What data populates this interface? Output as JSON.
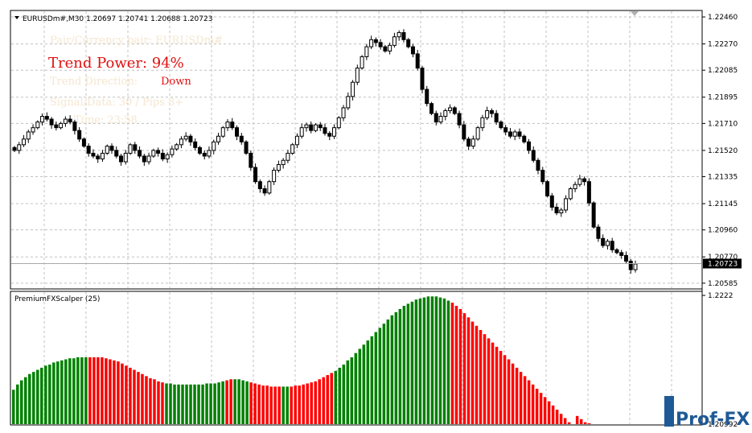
{
  "window": {
    "symbol_header": "EURUSDm#,M30  1.20697 1.20741 1.20688 1.20723"
  },
  "overlay": {
    "pair_line": "Pair/Currency pair: EURUSDm#",
    "trend_power": "Trend Power: 94%",
    "trend_direction_label": "Trend Direction:",
    "trend_direction": "Down",
    "line4": "Signal/Data: 30 / Pips 8+",
    "line5": "Time: 23:58"
  },
  "indicator": {
    "label": "PremiumFXScalper (25)"
  },
  "logo": {
    "text": "Prof-FX"
  },
  "colors": {
    "bull": "#008000",
    "bear": "#ff0000",
    "candle_wick": "#000000",
    "grid": "#c0c0c0",
    "price_line": "#a9a9a9",
    "text_red": "#e01010"
  },
  "chart_data": [
    {
      "type": "candlestick",
      "title": "EURUSDm#,M30",
      "ohlc_last": {
        "open": 1.20697,
        "high": 1.20741,
        "low": 1.20688,
        "close": 1.20723
      },
      "current_price": "1.20723",
      "y_ticks": [
        "1.22460",
        "1.22270",
        "1.22085",
        "1.21895",
        "1.21710",
        "1.21520",
        "1.21335",
        "1.21145",
        "1.20960",
        "1.20770",
        "1.20585"
      ],
      "ylim": [
        1.2055,
        1.225
      ],
      "grid": true,
      "closes": [
        1.2152,
        1.2156,
        1.216,
        1.2165,
        1.2168,
        1.2172,
        1.2176,
        1.2174,
        1.217,
        1.2168,
        1.2171,
        1.2174,
        1.2172,
        1.2166,
        1.216,
        1.2155,
        1.215,
        1.2148,
        1.2146,
        1.215,
        1.2155,
        1.2152,
        1.2148,
        1.2144,
        1.215,
        1.2156,
        1.2152,
        1.2148,
        1.2144,
        1.2148,
        1.2152,
        1.215,
        1.2146,
        1.2149,
        1.2153,
        1.2156,
        1.216,
        1.2162,
        1.2158,
        1.2154,
        1.215,
        1.2148,
        1.2152,
        1.2158,
        1.2162,
        1.2168,
        1.2172,
        1.2168,
        1.2162,
        1.2158,
        1.215,
        1.214,
        1.213,
        1.2125,
        1.2122,
        1.213,
        1.2138,
        1.2142,
        1.2145,
        1.215,
        1.2156,
        1.2162,
        1.2168,
        1.217,
        1.2166,
        1.217,
        1.2168,
        1.2164,
        1.2162,
        1.2168,
        1.2175,
        1.2182,
        1.219,
        1.22,
        1.221,
        1.2218,
        1.2225,
        1.223,
        1.2228,
        1.2225,
        1.2222,
        1.2226,
        1.2232,
        1.2235,
        1.223,
        1.2225,
        1.222,
        1.221,
        1.2195,
        1.2185,
        1.2178,
        1.2172,
        1.2176,
        1.218,
        1.2182,
        1.2178,
        1.217,
        1.216,
        1.2155,
        1.216,
        1.2168,
        1.2175,
        1.218,
        1.2178,
        1.2172,
        1.2168,
        1.2165,
        1.2162,
        1.2165,
        1.2162,
        1.2158,
        1.2152,
        1.2145,
        1.2138,
        1.213,
        1.212,
        1.2112,
        1.2108,
        1.211,
        1.2118,
        1.2125,
        1.2128,
        1.2132,
        1.213,
        1.2115,
        1.2098,
        1.209,
        1.2085,
        1.2088,
        1.2082,
        1.208,
        1.2078,
        1.2074,
        1.2068,
        1.2072
      ]
    },
    {
      "type": "bar",
      "title": "PremiumFXScalper (25)",
      "y_ticks": [
        "1.2222",
        "1.20992"
      ],
      "ylim": [
        1.20992,
        1.2222
      ],
      "colors_by_segment": [
        {
          "from": 0,
          "to": 18,
          "color": "bull"
        },
        {
          "from": 19,
          "to": 37,
          "color": "bear"
        },
        {
          "from": 38,
          "to": 52,
          "color": "bull"
        },
        {
          "from": 53,
          "to": 54,
          "color": "bear"
        },
        {
          "from": 55,
          "to": 58,
          "color": "bull"
        },
        {
          "from": 59,
          "to": 66,
          "color": "bear"
        },
        {
          "from": 67,
          "to": 68,
          "color": "bull"
        },
        {
          "from": 69,
          "to": 79,
          "color": "bear"
        },
        {
          "from": 80,
          "to": 108,
          "color": "bull"
        },
        {
          "from": 109,
          "to": 143,
          "color": "bear"
        },
        {
          "from": 144,
          "to": 145,
          "color": "bull"
        },
        {
          "from": 146,
          "to": 153,
          "color": "bear"
        }
      ],
      "values": [
        1.2132,
        1.2137,
        1.2141,
        1.2144,
        1.2147,
        1.2149,
        1.2151,
        1.2153,
        1.2155,
        1.2156,
        1.2158,
        1.2159,
        1.216,
        1.2161,
        1.2162,
        1.2162,
        1.2163,
        1.2163,
        1.2163,
        1.2163,
        1.2163,
        1.2163,
        1.2163,
        1.2162,
        1.2161,
        1.216,
        1.2159,
        1.2157,
        1.2155,
        1.2153,
        1.2151,
        1.2149,
        1.2147,
        1.2145,
        1.2143,
        1.2142,
        1.214,
        1.2139,
        1.2138,
        1.2138,
        1.2137,
        1.2137,
        1.2137,
        1.2137,
        1.2137,
        1.2137,
        1.2137,
        1.2137,
        1.2138,
        1.2138,
        1.2138,
        1.2139,
        1.214,
        1.2141,
        1.2142,
        1.2142,
        1.2142,
        1.2141,
        1.214,
        1.2139,
        1.2138,
        1.2137,
        1.2136,
        1.2136,
        1.2135,
        1.2135,
        1.2135,
        1.2135,
        1.2135,
        1.2135,
        1.2136,
        1.2136,
        1.2137,
        1.2138,
        1.2139,
        1.214,
        1.2142,
        1.2144,
        1.2146,
        1.2148,
        1.215,
        1.2153,
        1.2156,
        1.216,
        1.2163,
        1.2167,
        1.2171,
        1.2175,
        1.2179,
        1.2183,
        1.2187,
        1.2191,
        1.2195,
        1.2199,
        1.2203,
        1.2206,
        1.2209,
        1.2212,
        1.2214,
        1.2216,
        1.2218,
        1.2219,
        1.222,
        1.2221,
        1.2221,
        1.2221,
        1.222,
        1.2219,
        1.2217,
        1.2215,
        1.2212,
        1.2209,
        1.2205,
        1.2201,
        1.2197,
        1.2193,
        1.2189,
        1.2185,
        1.2181,
        1.2177,
        1.2173,
        1.2169,
        1.2165,
        1.2161,
        1.2157,
        1.2153,
        1.2149,
        1.2145,
        1.2141,
        1.2137,
        1.2133,
        1.2129,
        1.2125,
        1.2121,
        1.2117,
        1.2113,
        1.2109,
        1.2105,
        1.2101,
        1.20992,
        1.2107,
        1.2104,
        1.2101,
        1.21,
        1.20995,
        1.20993,
        1.20992,
        1.20992,
        1.20992,
        1.20992,
        1.20992,
        1.20992,
        1.20992,
        1.20992
      ]
    }
  ]
}
